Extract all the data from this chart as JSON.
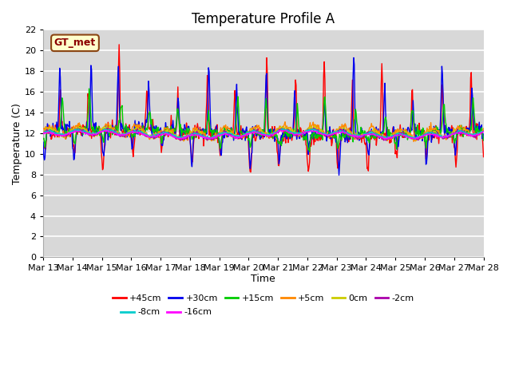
{
  "title": "Temperature Profile A",
  "xlabel": "Time",
  "ylabel": "Temperature (C)",
  "ylim": [
    0,
    22
  ],
  "yticks": [
    0,
    2,
    4,
    6,
    8,
    10,
    12,
    14,
    16,
    18,
    20,
    22
  ],
  "x_tick_labels": [
    "Mar 13",
    "Mar 14",
    "Mar 15",
    "Mar 16",
    "Mar 17",
    "Mar 18",
    "Mar 19",
    "Mar 20",
    "Mar 21",
    "Mar 22",
    "Mar 23",
    "Mar 24",
    "Mar 25",
    "Mar 26",
    "Mar 27",
    "Mar 28"
  ],
  "legend_label": "GT_met",
  "legend_box_color": "#ffffcc",
  "legend_box_edge": "#8B4513",
  "legend_text_color": "#8B0000",
  "series": [
    {
      "label": "+45cm",
      "color": "#ff0000",
      "lw": 1.0
    },
    {
      "label": "+30cm",
      "color": "#0000ee",
      "lw": 1.0
    },
    {
      "label": "+15cm",
      "color": "#00cc00",
      "lw": 1.0
    },
    {
      "label": "+5cm",
      "color": "#ff8800",
      "lw": 1.0
    },
    {
      "label": "0cm",
      "color": "#cccc00",
      "lw": 1.0
    },
    {
      "label": "-2cm",
      "color": "#aa00aa",
      "lw": 1.0
    },
    {
      "label": "-8cm",
      "color": "#00cccc",
      "lw": 1.0
    },
    {
      "label": "-16cm",
      "color": "#ff00ff",
      "lw": 1.0
    }
  ],
  "plot_bg_color": "#d8d8d8",
  "fig_bg_color": "#ffffff",
  "grid_color": "#ffffff",
  "title_fontsize": 12,
  "axis_label_fontsize": 9,
  "tick_fontsize": 8,
  "n_days": 15,
  "pts_per_day": 48
}
